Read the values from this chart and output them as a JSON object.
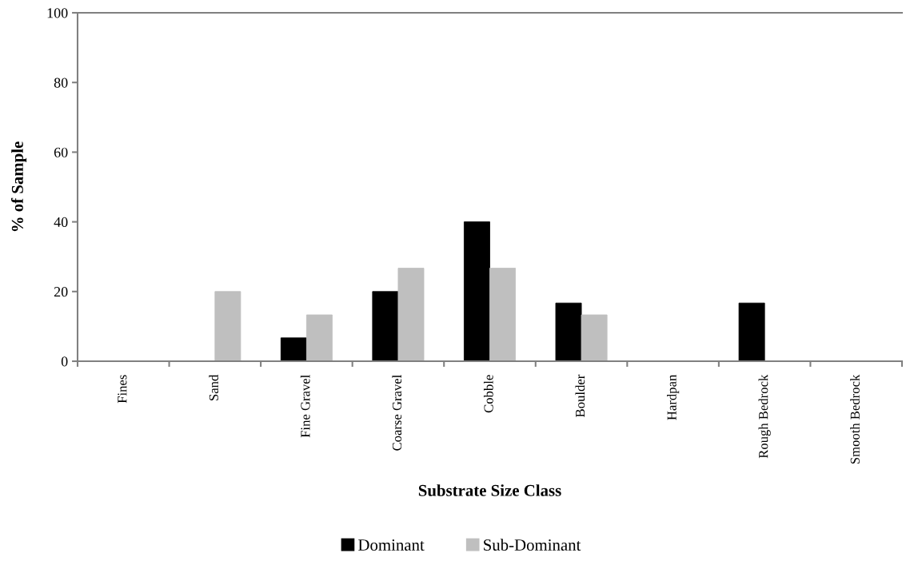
{
  "chart_data": {
    "type": "bar",
    "xlabel": "Substrate Size Class",
    "ylabel": "% of Sample",
    "categories": [
      "Fines",
      "Sand",
      "Fine Gravel",
      "Coarse Gravel",
      "Cobble",
      "Boulder",
      "Hardpan",
      "Rough Bedrock",
      "Smooth Bedrock"
    ],
    "series": [
      {
        "name": "Dominant",
        "color": "#000000",
        "values": [
          0,
          0,
          6.7,
          20,
          40,
          16.7,
          0,
          16.7,
          0
        ]
      },
      {
        "name": "Sub-Dominant",
        "color": "#bfbfbf",
        "values": [
          0,
          20,
          13.3,
          26.7,
          26.7,
          13.3,
          0,
          0,
          0
        ]
      }
    ],
    "ylim": [
      0,
      100
    ],
    "yticks": [
      0,
      20,
      40,
      60,
      80,
      100
    ],
    "grid": false,
    "legend": "bottom"
  }
}
